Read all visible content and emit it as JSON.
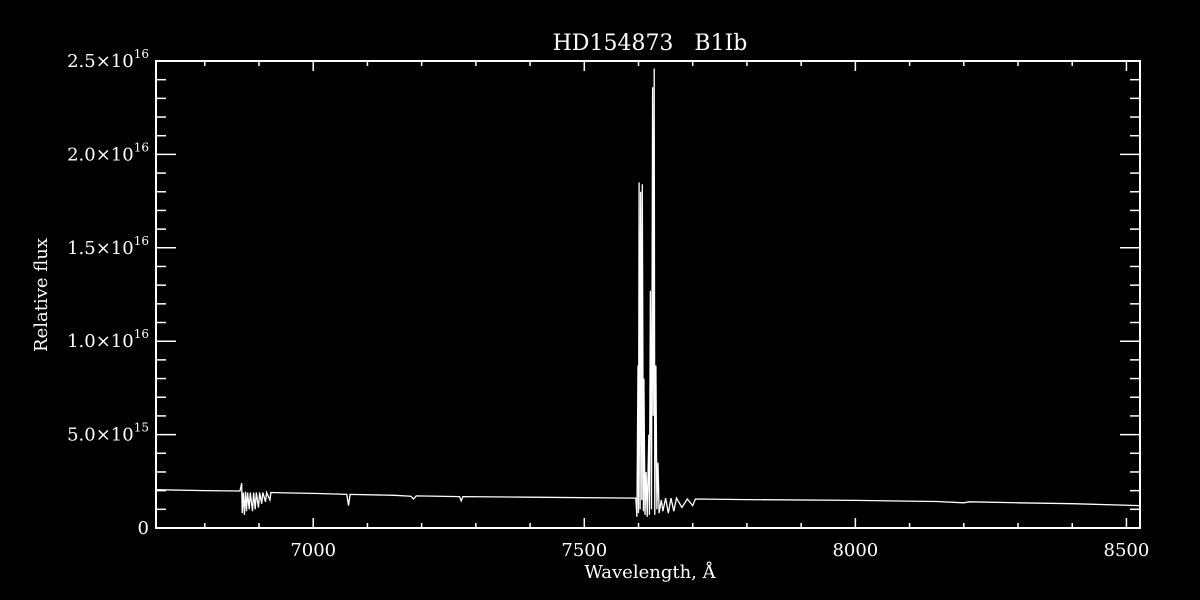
{
  "chart_data": {
    "type": "line",
    "title": "HD154873   B1Ib",
    "xlabel": "Wavelength, Å",
    "ylabel": "Relative flux",
    "xlim": [
      6710,
      8525
    ],
    "ylim": [
      0,
      2.5e+16
    ],
    "x_ticks": [
      {
        "value": 7000,
        "label": "7000"
      },
      {
        "value": 7500,
        "label": "7500"
      },
      {
        "value": 8000,
        "label": "8000"
      },
      {
        "value": 8500,
        "label": "8500"
      }
    ],
    "y_ticks": [
      {
        "value": 0,
        "mantissa": "0",
        "exp": ""
      },
      {
        "value": 5000000000000000.0,
        "mantissa": "5.0×10",
        "exp": "15"
      },
      {
        "value": 1e+16,
        "mantissa": "1.0×10",
        "exp": "16"
      },
      {
        "value": 1.5e+16,
        "mantissa": "1.5×10",
        "exp": "16"
      },
      {
        "value": 2e+16,
        "mantissa": "2.0×10",
        "exp": "16"
      },
      {
        "value": 2.5e+16,
        "mantissa": "2.5×10",
        "exp": "16"
      }
    ],
    "x_minor_step": 100,
    "y_minor_step": 1000000000000000.0,
    "grid": false,
    "colors": {
      "background": "#000000",
      "foreground": "#ffffff"
    },
    "series": [
      {
        "wavelength": [
          6710,
          6800,
          6865,
          6868,
          6869,
          6871,
          6873,
          6875,
          6877,
          6879,
          6882,
          6884,
          6888,
          6890,
          6893,
          6895,
          6899,
          6901,
          6905,
          6907,
          6912,
          6914,
          6920,
          6922,
          6950,
          7000,
          7062,
          7065,
          7068,
          7150,
          7180,
          7185,
          7190,
          7270,
          7273,
          7276,
          7400,
          7595,
          7597,
          7599,
          7600,
          7601,
          7603,
          7604,
          7606,
          7607,
          7609,
          7610,
          7612,
          7614,
          7616,
          7619,
          7620,
          7622,
          7624,
          7626,
          7627,
          7629,
          7630,
          7632,
          7634,
          7636,
          7638,
          7642,
          7645,
          7650,
          7655,
          7660,
          7665,
          7670,
          7680,
          7690,
          7700,
          7705,
          7800,
          8000,
          8150,
          8200,
          8210,
          8300,
          8400,
          8525
        ],
        "flux": [
          2050000000000000.0,
          2000000000000000.0,
          1980000000000000.0,
          2400000000000000.0,
          800000000000000.0,
          1900000000000000.0,
          700000000000000.0,
          1950000000000000.0,
          900000000000000.0,
          1900000000000000.0,
          1000000000000000.0,
          1900000000000000.0,
          900000000000000.0,
          1900000000000000.0,
          1000000000000000.0,
          1900000000000000.0,
          1100000000000000.0,
          1900000000000000.0,
          1300000000000000.0,
          1900000000000000.0,
          1400000000000000.0,
          1900000000000000.0,
          1500000000000000.0,
          1900000000000000.0,
          1880000000000000.0,
          1850000000000000.0,
          1800000000000000.0,
          1200000000000000.0,
          1800000000000000.0,
          1750000000000000.0,
          1700000000000000.0,
          1550000000000000.0,
          1720000000000000.0,
          1680000000000000.0,
          1450000000000000.0,
          1680000000000000.0,
          1650000000000000.0,
          1600000000000000.0,
          600000000000000.0,
          8700000000000000.0,
          800000000000000.0,
          1.85e+16,
          1000000000000000.0,
          1.8e+16,
          1500000000000000.0,
          1.84e+16,
          900000000000000.0,
          8000000000000000.0,
          700000000000000.0,
          3000000000000000.0,
          600000000000000.0,
          5000000000000000.0,
          700000000000000.0,
          1.27e+16,
          1000000000000000.0,
          2.36e+16,
          6000000000000000.0,
          2.46e+16,
          700000000000000.0,
          8700000000000000.0,
          1000000000000000.0,
          3500000000000000.0,
          800000000000000.0,
          1500000000000000.0,
          900000000000000.0,
          1600000000000000.0,
          800000000000000.0,
          1600000000000000.0,
          900000000000000.0,
          1600000000000000.0,
          1100000000000000.0,
          1550000000000000.0,
          1200000000000000.0,
          1550000000000000.0,
          1520000000000000.0,
          1480000000000000.0,
          1420000000000000.0,
          1350000000000000.0,
          1400000000000000.0,
          1350000000000000.0,
          1300000000000000.0,
          1200000000000000.0
        ]
      }
    ]
  }
}
